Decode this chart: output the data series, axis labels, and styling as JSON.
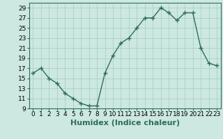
{
  "x": [
    0,
    1,
    2,
    3,
    4,
    5,
    6,
    7,
    8,
    9,
    10,
    11,
    12,
    13,
    14,
    15,
    16,
    17,
    18,
    19,
    20,
    21,
    22,
    23
  ],
  "y": [
    16,
    17,
    15,
    14,
    12,
    11,
    10,
    9.5,
    9.5,
    16,
    19.5,
    22,
    23,
    25,
    27,
    27,
    29,
    28,
    26.5,
    28,
    28,
    21,
    18,
    17.5
  ],
  "xlabel": "Humidex (Indice chaleur)",
  "ylim": [
    9,
    30
  ],
  "yticks": [
    9,
    11,
    13,
    15,
    17,
    19,
    21,
    23,
    25,
    27,
    29
  ],
  "xticks": [
    0,
    1,
    2,
    3,
    4,
    5,
    6,
    7,
    8,
    9,
    10,
    11,
    12,
    13,
    14,
    15,
    16,
    17,
    18,
    19,
    20,
    21,
    22,
    23
  ],
  "line_color": "#2e6b5e",
  "marker": "+",
  "marker_size": 4,
  "bg_color": "#cce8e0",
  "grid_color": "#aacfc8",
  "xlabel_fontsize": 8,
  "tick_fontsize": 6.5,
  "lw": 1.0
}
